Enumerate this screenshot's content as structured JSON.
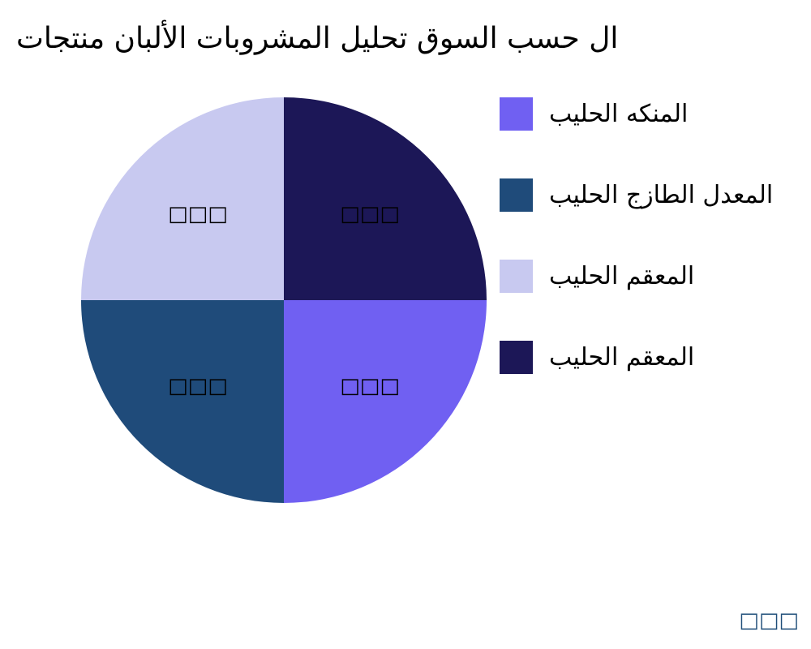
{
  "chart_data": {
    "type": "pie",
    "title": "ال حسب السوق تحليل المشروبات الألبان منتجات",
    "slices": [
      {
        "label": "المنكه الحليب",
        "value": 25,
        "data_label": "□□□",
        "color": "#7060f2"
      },
      {
        "label": "المعدل الطازج الحليب",
        "value": 25,
        "data_label": "□□□",
        "color": "#1f4b7a"
      },
      {
        "label": "المعقم الحليب",
        "value": 25,
        "data_label": "□□□",
        "color": "#c8c9f0"
      },
      {
        "label": "المعقم الحليب",
        "value": 25,
        "data_label": "□□□",
        "color": "#1c1757"
      }
    ],
    "start_angle": 0,
    "direction": "clockwise",
    "legend_position": "right"
  },
  "watermark": "□□□"
}
